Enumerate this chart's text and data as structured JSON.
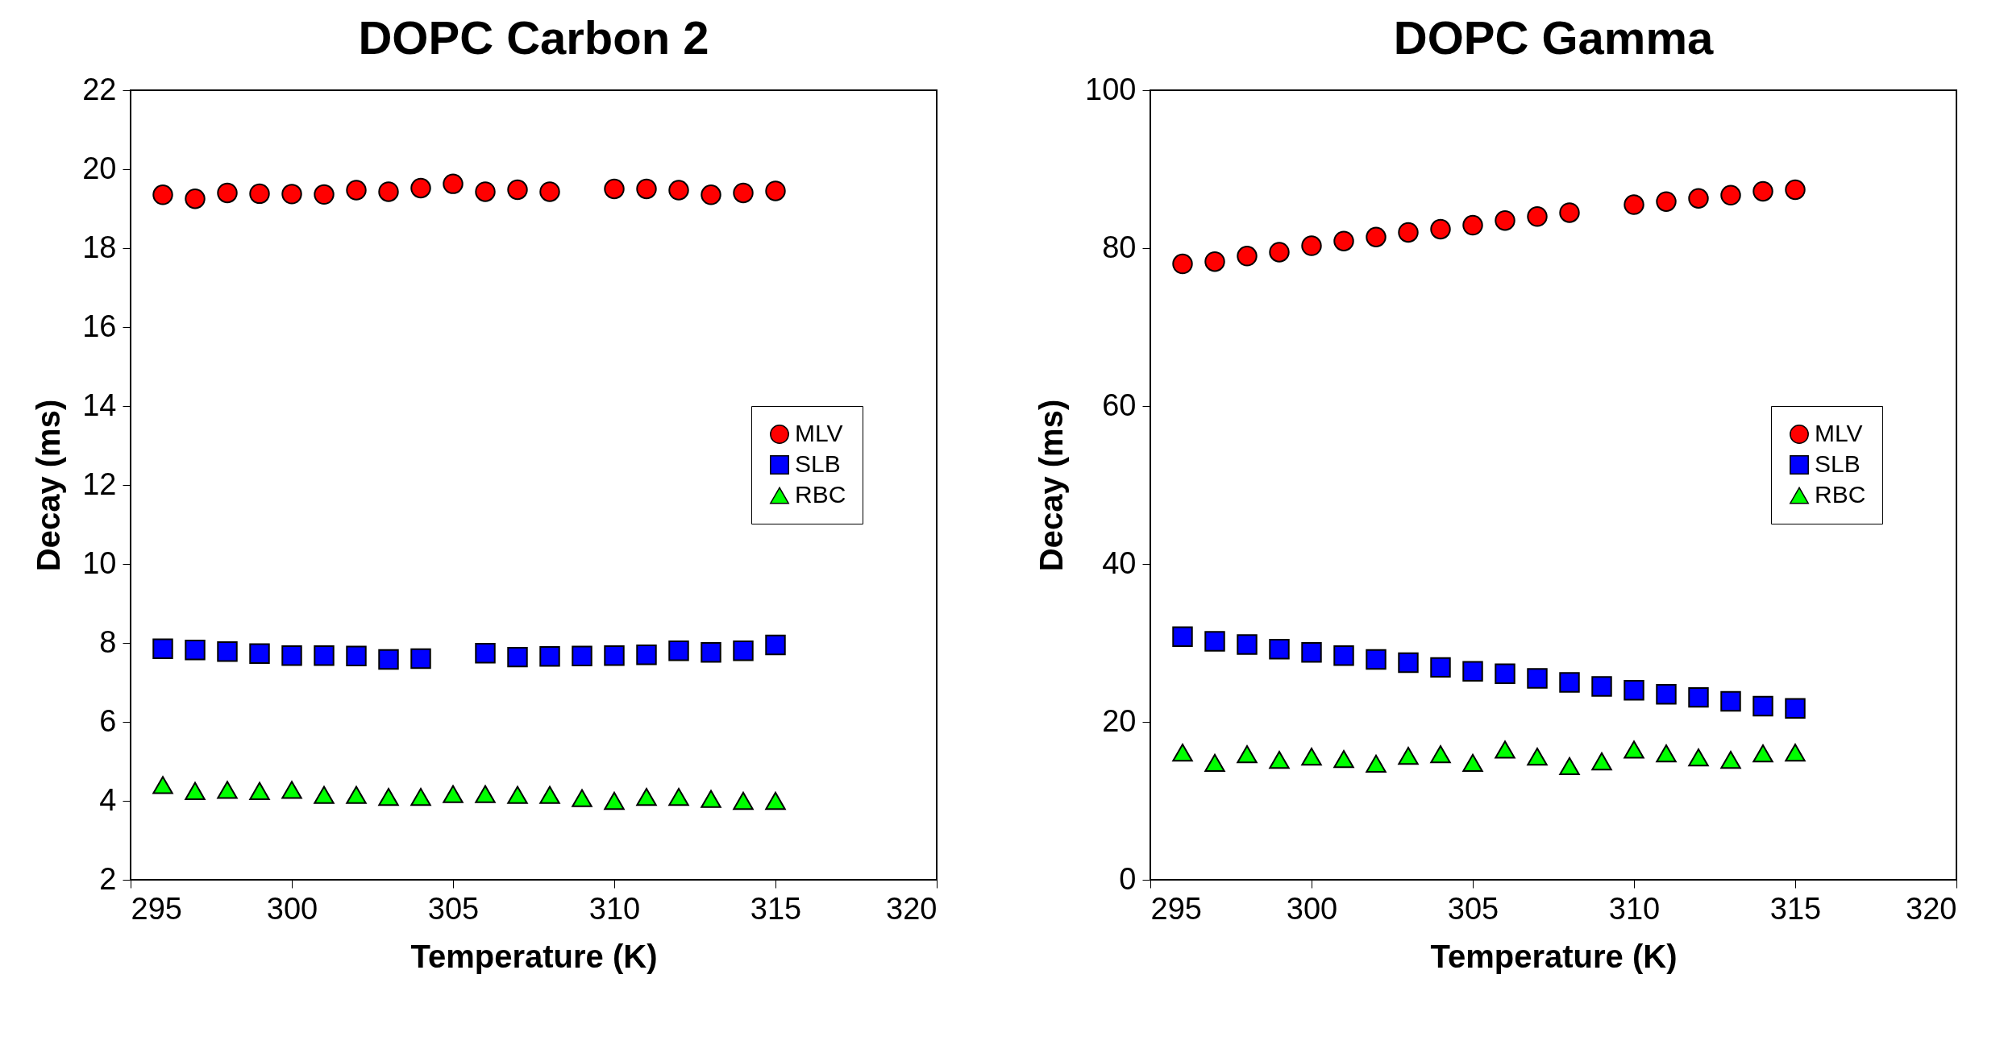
{
  "chart_data": [
    {
      "type": "scatter",
      "title": "DOPC Carbon 2",
      "xlabel": "Temperature (K)",
      "ylabel": "Decay (ms)",
      "x": [
        296,
        297,
        298,
        299,
        300,
        301,
        302,
        303,
        304,
        305,
        306,
        307,
        308,
        309,
        310,
        311,
        312,
        313,
        314,
        315
      ],
      "xlim": [
        295,
        320
      ],
      "xticks": [
        295,
        300,
        305,
        310,
        315,
        320
      ],
      "ylim": [
        2,
        22
      ],
      "yticks": [
        2,
        4,
        6,
        8,
        10,
        12,
        14,
        16,
        18,
        20,
        22
      ],
      "grid": false,
      "legend": "right",
      "series": [
        {
          "name": "MLV",
          "color": "#ff0000",
          "marker": "circle",
          "values": [
            19.35,
            19.25,
            19.4,
            19.38,
            19.37,
            19.36,
            19.47,
            19.43,
            19.52,
            19.63,
            19.43,
            19.48,
            19.43,
            null,
            19.5,
            19.5,
            19.47,
            19.35,
            19.4,
            19.45
          ]
        },
        {
          "name": "SLB",
          "color": "#0000ff",
          "marker": "square",
          "values": [
            7.85,
            7.82,
            7.78,
            7.73,
            7.68,
            7.68,
            7.67,
            7.58,
            7.6,
            null,
            7.74,
            7.64,
            7.66,
            7.67,
            7.68,
            7.7,
            7.8,
            7.76,
            7.8,
            7.95
          ]
        },
        {
          "name": "RBC",
          "color": "#00ff00",
          "marker": "triangle",
          "values": [
            4.4,
            4.25,
            4.28,
            4.25,
            4.28,
            4.15,
            4.15,
            4.1,
            4.1,
            4.17,
            4.17,
            4.15,
            4.15,
            4.07,
            4.0,
            4.1,
            4.1,
            4.05,
            4.0,
            4.0
          ]
        }
      ]
    },
    {
      "type": "scatter",
      "title": "DOPC Gamma",
      "xlabel": "Temperature (K)",
      "ylabel": "Decay (ms)",
      "x": [
        296,
        297,
        298,
        299,
        300,
        301,
        302,
        303,
        304,
        305,
        306,
        307,
        308,
        309,
        310,
        311,
        312,
        313,
        314,
        315
      ],
      "xlim": [
        295,
        320
      ],
      "xticks": [
        295,
        300,
        305,
        310,
        315,
        320
      ],
      "ylim": [
        0,
        100
      ],
      "yticks": [
        0,
        20,
        40,
        60,
        80,
        100
      ],
      "grid": false,
      "legend": "right",
      "series": [
        {
          "name": "MLV",
          "color": "#ff0000",
          "marker": "circle",
          "values": [
            78.0,
            78.3,
            79.0,
            79.5,
            80.3,
            80.9,
            81.4,
            82.0,
            82.4,
            82.9,
            83.5,
            84.0,
            84.5,
            null,
            85.5,
            85.9,
            86.3,
            86.7,
            87.2,
            87.4
          ]
        },
        {
          "name": "SLB",
          "color": "#0000ff",
          "marker": "square",
          "values": [
            30.8,
            30.2,
            29.8,
            29.2,
            28.8,
            28.4,
            27.9,
            27.5,
            26.9,
            26.4,
            26.1,
            25.5,
            25.0,
            24.5,
            24.0,
            23.5,
            23.1,
            22.6,
            22.0,
            21.7
          ]
        },
        {
          "name": "RBC",
          "color": "#00ff00",
          "marker": "triangle",
          "values": [
            16.1,
            14.8,
            15.9,
            15.2,
            15.6,
            15.3,
            14.7,
            15.7,
            15.9,
            14.8,
            16.5,
            15.6,
            14.4,
            15.0,
            16.5,
            16.0,
            15.5,
            15.2,
            16.0,
            16.1
          ]
        }
      ]
    }
  ]
}
